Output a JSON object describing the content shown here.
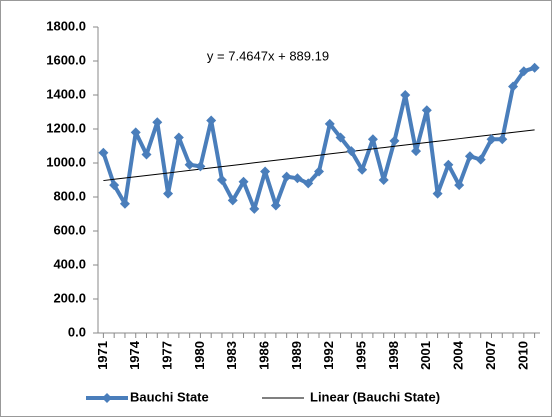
{
  "chart_data": {
    "type": "line",
    "annotation": "y = 7.4647x + 889.19",
    "categories": [
      "1971",
      null,
      null,
      "1974",
      null,
      null,
      "1977",
      null,
      null,
      "1980",
      null,
      null,
      "1983",
      null,
      null,
      "1986",
      null,
      null,
      "1989",
      null,
      null,
      "1992",
      null,
      null,
      "1995",
      null,
      null,
      "1998",
      null,
      null,
      "2001",
      null,
      null,
      "2004",
      null,
      null,
      "2007",
      null,
      null,
      "2010",
      null
    ],
    "series": [
      {
        "name": "Bauchi State",
        "color": "#4a7ebb",
        "values": [
          1060,
          870,
          760,
          1180,
          1050,
          1240,
          820,
          1150,
          990,
          980,
          1250,
          900,
          780,
          890,
          730,
          950,
          750,
          920,
          910,
          880,
          950,
          1230,
          1150,
          1070,
          960,
          1140,
          900,
          1130,
          1400,
          1070,
          1310,
          820,
          990,
          870,
          1040,
          1020,
          1140,
          1140,
          1450,
          1540,
          1560
        ]
      },
      {
        "name": "Linear (Bauchi State)",
        "color": "#000000",
        "values": [
          896.7,
          904.1,
          911.6,
          919.0,
          926.5,
          934.0,
          941.4,
          948.9,
          956.4,
          963.8,
          971.3,
          978.8,
          986.2,
          993.7,
          1001.2,
          1008.6,
          1016.1,
          1023.6,
          1031.0,
          1038.5,
          1045.9,
          1053.4,
          1060.9,
          1068.3,
          1075.8,
          1083.3,
          1090.7,
          1098.2,
          1105.7,
          1113.1,
          1120.6,
          1128.1,
          1135.5,
          1143.0,
          1150.5,
          1157.9,
          1165.4,
          1172.9,
          1180.3,
          1187.8,
          1195.2
        ]
      }
    ],
    "ylim": [
      0,
      1800
    ],
    "yticks": [
      {
        "value": 0,
        "label": "0.0"
      },
      {
        "value": 200,
        "label": "200.0"
      },
      {
        "value": 400,
        "label": "400.0"
      },
      {
        "value": 600,
        "label": "600.0"
      },
      {
        "value": 800,
        "label": "800.0"
      },
      {
        "value": 1000,
        "label": "1000.0"
      },
      {
        "value": 1200,
        "label": "1200.0"
      },
      {
        "value": 1400,
        "label": "1400.0"
      },
      {
        "value": 1600,
        "label": "1600.0"
      },
      {
        "value": 1800,
        "label": "1800.0"
      }
    ],
    "grid": false,
    "legend": "bottom"
  }
}
